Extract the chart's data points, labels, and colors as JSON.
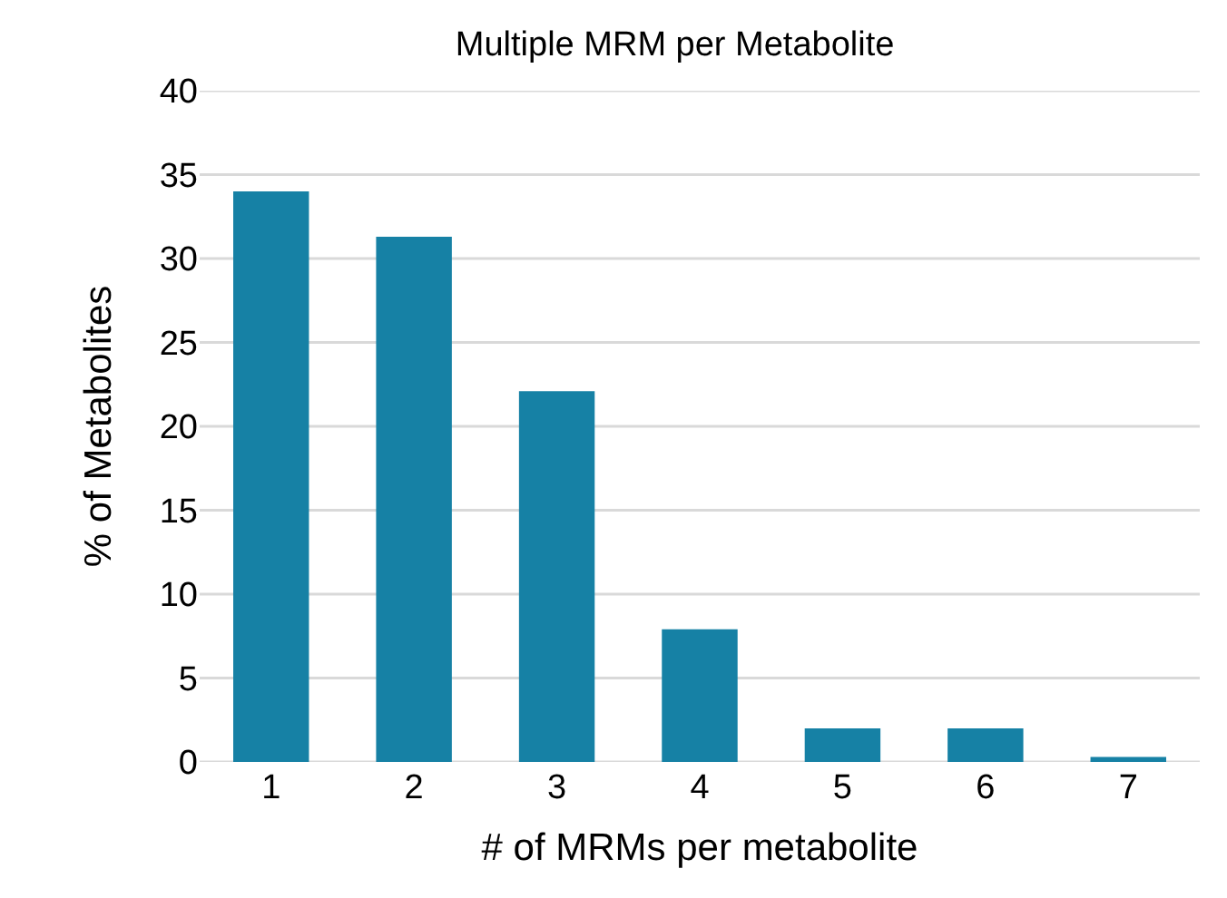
{
  "chart_data": {
    "type": "bar",
    "title": "Multiple MRM per Metabolite",
    "xlabel": "# of MRMs per metabolite",
    "ylabel": "% of Metabolites",
    "categories": [
      "1",
      "2",
      "3",
      "4",
      "5",
      "6",
      "7"
    ],
    "values": [
      34,
      31.3,
      22.1,
      7.9,
      2,
      2,
      0.3
    ],
    "color": "#1681a5",
    "ylim": [
      0,
      40
    ],
    "yticks": [
      0,
      5,
      10,
      15,
      20,
      25,
      30,
      35,
      40
    ],
    "grid": "y"
  }
}
